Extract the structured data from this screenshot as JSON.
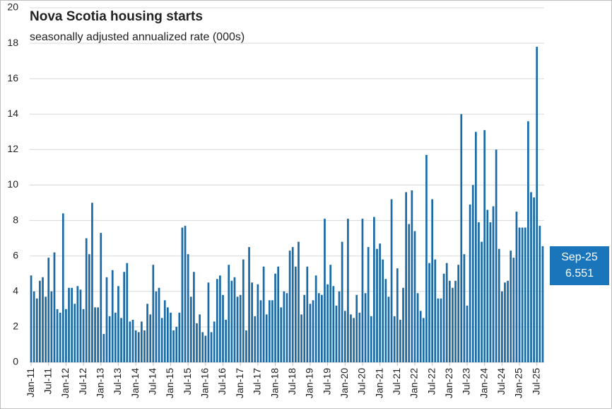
{
  "chart_data": {
    "type": "bar",
    "title": "Nova Scotia housing starts",
    "subtitle": "seasonally adjusted annualized rate (000s)",
    "color": "#1a6aa6",
    "grid": true,
    "ylim": [
      0,
      20
    ],
    "yticks": [
      0,
      2,
      4,
      6,
      8,
      10,
      12,
      14,
      16,
      18,
      20
    ],
    "categories": [
      "Jan-11",
      null,
      null,
      null,
      null,
      null,
      "Jul-11",
      null,
      null,
      null,
      null,
      null,
      "Jan-12",
      null,
      null,
      null,
      null,
      null,
      "Jul-12",
      null,
      null,
      null,
      null,
      null,
      "Jan-13",
      null,
      null,
      null,
      null,
      null,
      "Jul-13",
      null,
      null,
      null,
      null,
      null,
      "Jan-14",
      null,
      null,
      null,
      null,
      null,
      "Jul-14",
      null,
      null,
      null,
      null,
      null,
      "Jan-15",
      null,
      null,
      null,
      null,
      null,
      "Jul-15",
      null,
      null,
      null,
      null,
      null,
      "Jan-16",
      null,
      null,
      null,
      null,
      null,
      "Jul-16",
      null,
      null,
      null,
      null,
      null,
      "Jan-17",
      null,
      null,
      null,
      null,
      null,
      "Jul-17",
      null,
      null,
      null,
      null,
      null,
      "Jan-18",
      null,
      null,
      null,
      null,
      null,
      "Jul-18",
      null,
      null,
      null,
      null,
      null,
      "Jan-19",
      null,
      null,
      null,
      null,
      null,
      "Jul-19",
      null,
      null,
      null,
      null,
      null,
      "Jan-20",
      null,
      null,
      null,
      null,
      null,
      "Jul-20",
      null,
      null,
      null,
      null,
      null,
      "Jan-21",
      null,
      null,
      null,
      null,
      null,
      "Jul-21",
      null,
      null,
      null,
      null,
      null,
      "Jan-22",
      null,
      null,
      null,
      null,
      null,
      "Jul-22",
      null,
      null,
      null,
      null,
      null,
      "Jan-23",
      null,
      null,
      null,
      null,
      null,
      "Jul-23",
      null,
      null,
      null,
      null,
      null,
      "Jan-24",
      null,
      null,
      null,
      null,
      null,
      "Jul-24",
      null,
      null,
      null,
      null,
      null,
      "Jan-25",
      null,
      null,
      null,
      null,
      null,
      "Jul-25",
      null,
      null
    ],
    "values": [
      4.9,
      4.0,
      3.6,
      4.6,
      4.8,
      3.7,
      5.9,
      4.0,
      6.2,
      3.0,
      2.8,
      8.4,
      3.0,
      4.2,
      4.2,
      3.3,
      4.3,
      4.1,
      3.0,
      7.0,
      6.1,
      9.0,
      3.1,
      3.1,
      7.3,
      1.6,
      4.8,
      2.6,
      5.2,
      2.8,
      4.3,
      2.5,
      5.1,
      5.6,
      2.3,
      2.4,
      1.8,
      1.7,
      2.3,
      1.8,
      3.3,
      2.7,
      5.5,
      4.0,
      4.2,
      2.5,
      3.5,
      3.1,
      2.8,
      1.8,
      2.0,
      2.8,
      7.6,
      7.7,
      6.1,
      3.7,
      5.1,
      2.2,
      2.7,
      1.7,
      1.5,
      4.5,
      1.7,
      2.3,
      4.7,
      4.9,
      3.8,
      2.4,
      5.5,
      4.6,
      4.8,
      3.7,
      3.8,
      5.8,
      1.8,
      6.5,
      4.5,
      2.6,
      4.4,
      3.5,
      5.4,
      2.7,
      3.5,
      3.5,
      5.0,
      5.4,
      3.1,
      4.0,
      3.9,
      6.3,
      6.5,
      5.4,
      6.8,
      2.7,
      3.8,
      5.4,
      3.3,
      3.5,
      4.9,
      3.9,
      3.8,
      8.1,
      4.4,
      5.5,
      4.3,
      3.2,
      4.0,
      6.8,
      2.9,
      8.1,
      2.7,
      2.5,
      3.8,
      2.8,
      8.1,
      3.9,
      6.5,
      2.6,
      8.2,
      6.4,
      6.7,
      5.8,
      4.7,
      3.7,
      9.2,
      2.6,
      5.3,
      2.4,
      4.2,
      9.6,
      7.8,
      9.7,
      7.4,
      3.9,
      2.9,
      2.5,
      11.7,
      5.6,
      9.2,
      5.8,
      3.6,
      3.6,
      5.0,
      5.6,
      4.6,
      4.2,
      4.6,
      5.5,
      14.0,
      6.1,
      3.2,
      8.9,
      10.0,
      13.0,
      7.9,
      6.8,
      13.1,
      8.6,
      7.9,
      8.8,
      12.0,
      6.4,
      4.0,
      4.5,
      4.6,
      6.3,
      5.9,
      8.5,
      7.6,
      7.6,
      7.6,
      13.6,
      9.6,
      9.3,
      17.8,
      7.7,
      6.551
    ],
    "annotation": {
      "label": "Sep-25",
      "value": 6.551
    }
  }
}
